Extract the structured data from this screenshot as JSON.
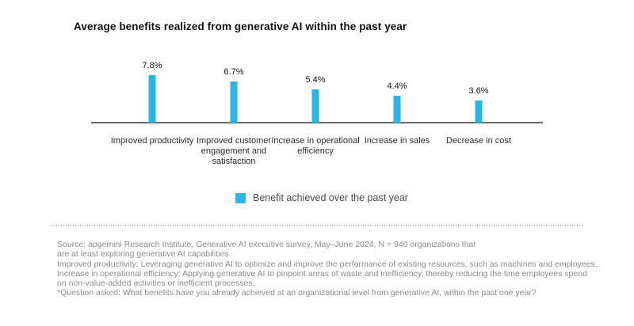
{
  "title": "Average benefits realized from generative AI within the past year",
  "chart_data": {
    "type": "bar",
    "title": "Average benefits realized from generative AI within the past year",
    "categories": [
      "Improved productivity",
      "Improved customer engagement and satisfaction",
      "Increase in operational efficiency",
      "Increase in sales",
      "Decrease in cost"
    ],
    "values": [
      7.8,
      6.7,
      5.4,
      4.4,
      3.6
    ],
    "value_labels": [
      "7.8%",
      "6.7%",
      "5.4%",
      "4.4%",
      "3.6%"
    ],
    "xlabel": "",
    "ylabel": "",
    "ylim": [
      0,
      8.5
    ],
    "grid": false,
    "legend_position": "bottom-center",
    "legend": [
      {
        "label": "Benefit achieved over the past year",
        "color": "#29B5E8"
      }
    ],
    "bar_color": "#29B5E8"
  },
  "footer": {
    "lines": [
      "Source: apgemini Research Institute, Generative AI executive survey, May–June 2024, N = 940 organizations that",
      "are at least exploring generative AI capabilities.",
      "Improved productivity: Leveraging generative AI to optimize and improve the performance of existing resources, such as machines and employees.",
      "Increase in operational efficiency: Applying generative AI to pinpoint areas of waste and inefficiency, thereby reducing the time employees spend",
      "on non-value-added activities or inefficient processes.",
      "*Question asked: What benefits have you already achieved at an organizational level from generative AI, within the past one year?"
    ]
  },
  "colors": {
    "bar": "#29B5E8",
    "axis": "#6B6B6B",
    "title_text": "#111111",
    "value_text": "#111111",
    "category_text": "#2B2B2B",
    "legend_text": "#4A4A4A",
    "footer_text": "#8C8C8C",
    "divider_dot": "#B3B3B3"
  }
}
